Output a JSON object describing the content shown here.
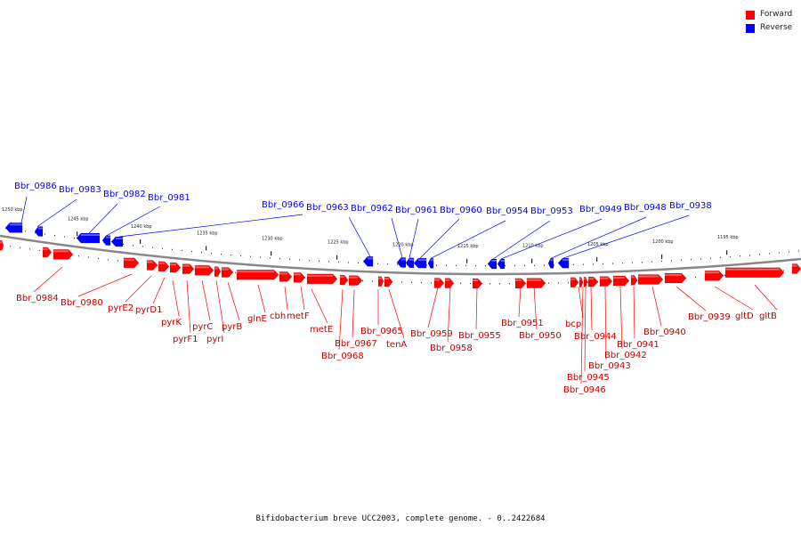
{
  "legend": {
    "forward_label": "Forward",
    "reverse_label": "Reverse",
    "forward_color": "#ff0000",
    "reverse_color": "#0000ff"
  },
  "caption": "Bifidobacterium breve UCC2003, complete genome. - 0..2422684",
  "ticks": [
    {
      "text": "1250 kbp"
    },
    {
      "text": "1245 kbp"
    },
    {
      "text": "1240 kbp"
    },
    {
      "text": "1235 kbp"
    },
    {
      "text": "1230 kbp"
    },
    {
      "text": "1225 kbp"
    },
    {
      "text": "1220 kbp"
    },
    {
      "text": "1215 kbp"
    },
    {
      "text": "1210 kbp"
    },
    {
      "text": "1205 kbp"
    },
    {
      "text": "1200 kbp"
    },
    {
      "text": "1195 kbp"
    }
  ],
  "reverse_genes": [
    {
      "label": "Bbr_0986"
    },
    {
      "label": "Bbr_0983"
    },
    {
      "label": "Bbr_0982"
    },
    {
      "label": "Bbr_0981"
    },
    {
      "label": "Bbr_0966"
    },
    {
      "label": "Bbr_0963"
    },
    {
      "label": "Bbr_0962"
    },
    {
      "label": "Bbr_0961"
    },
    {
      "label": "Bbr_0960"
    },
    {
      "label": "Bbr_0954"
    },
    {
      "label": "Bbr_0953"
    },
    {
      "label": "Bbr_0949"
    },
    {
      "label": "Bbr_0948"
    },
    {
      "label": "Bbr_0938"
    }
  ],
  "forward_genes": [
    {
      "label": "Bbr_0984"
    },
    {
      "label": "Bbr_0980"
    },
    {
      "label": "pyrE2"
    },
    {
      "label": "pyrD1"
    },
    {
      "label": "pyrK"
    },
    {
      "label": "pyrF1"
    },
    {
      "label": "pyrC"
    },
    {
      "label": "pyrI"
    },
    {
      "label": "pyrB"
    },
    {
      "label": "glnE"
    },
    {
      "label": "cbh"
    },
    {
      "label": "metF"
    },
    {
      "label": "metE"
    },
    {
      "label": "Bbr_0968"
    },
    {
      "label": "Bbr_0967"
    },
    {
      "label": "Bbr_0965"
    },
    {
      "label": "tenA"
    },
    {
      "label": "Bbr_0959"
    },
    {
      "label": "Bbr_0958"
    },
    {
      "label": "Bbr_0955"
    },
    {
      "label": "Bbr_0951"
    },
    {
      "label": "Bbr_0950"
    },
    {
      "label": "bcp"
    },
    {
      "label": "Bbr_0946"
    },
    {
      "label": "Bbr_0945"
    },
    {
      "label": "Bbr_0944"
    },
    {
      "label": "Bbr_0943"
    },
    {
      "label": "Bbr_0942"
    },
    {
      "label": "Bbr_0941"
    },
    {
      "label": "Bbr_0940"
    },
    {
      "label": "Bbr_0939"
    },
    {
      "label": "gltD"
    },
    {
      "label": "gltB"
    }
  ]
}
